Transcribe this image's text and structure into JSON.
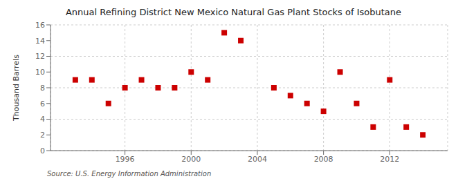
{
  "chart_data": {
    "type": "scatter",
    "title": "Annual Refining District New Mexico Natural Gas Plant Stocks of Isobutane",
    "ylabel": "Thousand Barrels",
    "source": "Source: U.S. Energy Information Administration",
    "x": [
      1993,
      1994,
      1995,
      1996,
      1997,
      1998,
      1999,
      2000,
      2001,
      2002,
      2003,
      2005,
      2006,
      2007,
      2008,
      2009,
      2010,
      2011,
      2012,
      2013,
      2014
    ],
    "values": [
      9,
      9,
      6,
      8,
      9,
      8,
      8,
      10,
      9,
      15,
      14,
      8,
      7,
      6,
      5,
      10,
      6,
      3,
      9,
      3,
      2
    ],
    "color": "#cc0000",
    "marker": "square",
    "xlim": [
      1991.5,
      2015.5
    ],
    "ylim": [
      0,
      16
    ],
    "xticks": [
      1996,
      2000,
      2004,
      2008,
      2012
    ],
    "yticks": [
      0,
      2,
      4,
      6,
      8,
      10,
      12,
      14,
      16
    ],
    "grid": true
  }
}
